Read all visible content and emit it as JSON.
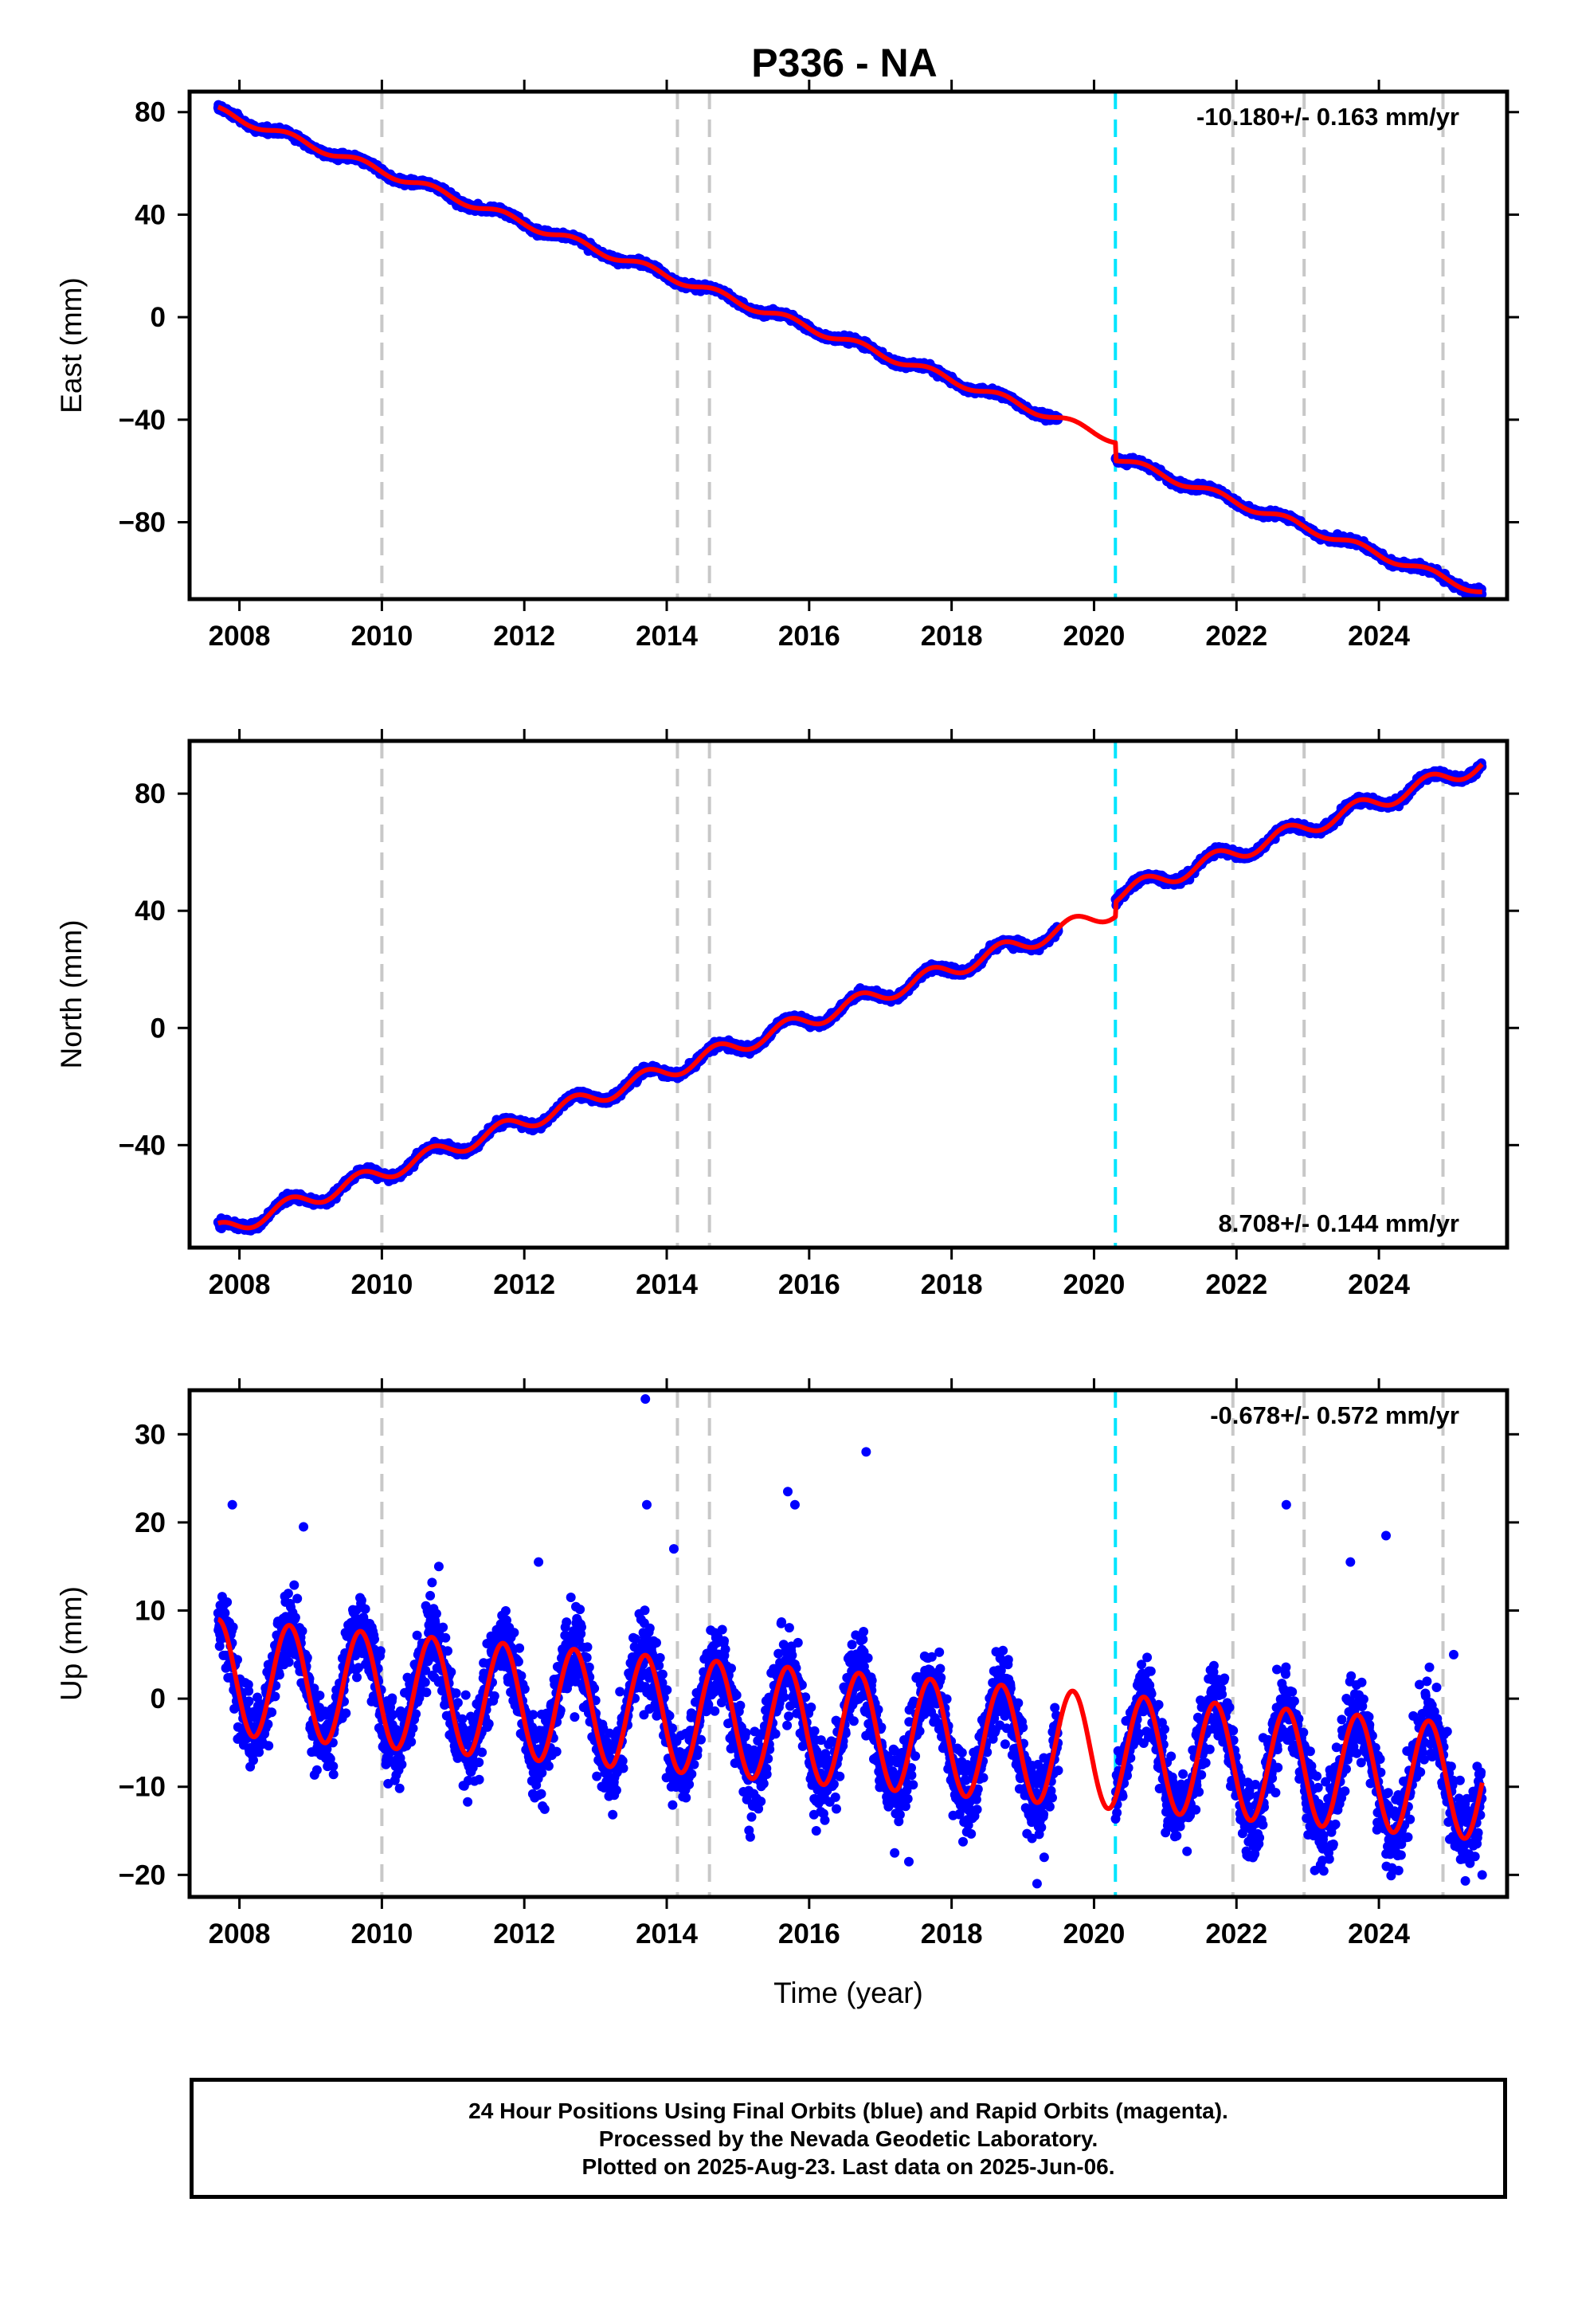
{
  "page": {
    "title": "P336 - NA",
    "footer": [
      "24 Hour Positions Using Final Orbits (blue) and Rapid Orbits (magenta).",
      "Processed by the Nevada Geodetic Laboratory.",
      "Plotted on 2025-Aug-23. Last data on 2025-Jun-06."
    ]
  },
  "colors": {
    "final_orbit_points": "#0000ff",
    "model_fit": "#ff0000",
    "equipment_change": "#c8c8c8",
    "earthquake": "#00e5ff"
  },
  "chart_data": [
    {
      "type": "scatter",
      "component": "East",
      "ylabel": "East (mm)",
      "xlabel": "",
      "xlim": [
        2007.3,
        2025.8
      ],
      "ylim": [
        -110,
        88
      ],
      "xticks": [
        2008,
        2010,
        2012,
        2014,
        2016,
        2018,
        2020,
        2022,
        2024
      ],
      "yticks": [
        -80,
        -40,
        0,
        40,
        80
      ],
      "rate_label": "-10.180+/- 0.163 mm/yr",
      "rate_placement": "top-right",
      "gray_dashed_lines": [
        2010.0,
        2014.15,
        2014.6,
        2021.95,
        2022.95,
        2024.9
      ],
      "cyan_dashed_lines": [
        2020.3
      ],
      "data_gap": [
        2019.5,
        2020.3
      ],
      "model": {
        "velocity_mm_per_yr": -10.18,
        "intercept_mm_at_2007_7": 80.5,
        "annual_amplitude_mm": 1.5,
        "offset_at_2020_3_mm": -7
      },
      "series": [
        {
          "name": "",
          "kind": "points",
          "x_range": [
            2007.7,
            2025.45
          ],
          "scatter_mm": 1.3,
          "anchor_points": [
            [
              2007.7,
              81
            ],
            [
              2010.0,
              59
            ],
            [
              2012.0,
              42
            ],
            [
              2014.0,
              20
            ],
            [
              2016.0,
              0
            ],
            [
              2018.0,
              -20
            ],
            [
              2019.4,
              -36
            ],
            [
              2020.3,
              -50
            ],
            [
              2022.0,
              -64
            ],
            [
              2024.0,
              -84
            ],
            [
              2025.4,
              -104
            ]
          ]
        },
        {
          "name": "",
          "kind": "model-line",
          "x_range": [
            2007.7,
            2025.45
          ]
        }
      ]
    },
    {
      "type": "scatter",
      "component": "North",
      "ylabel": "North (mm)",
      "xlabel": "",
      "xlim": [
        2007.3,
        2025.8
      ],
      "ylim": [
        -75,
        98
      ],
      "xticks": [
        2008,
        2010,
        2012,
        2014,
        2016,
        2018,
        2020,
        2022,
        2024
      ],
      "yticks": [
        -40,
        0,
        40,
        80
      ],
      "rate_label": "8.708+/- 0.144 mm/yr",
      "rate_placement": "bottom-right",
      "gray_dashed_lines": [
        2010.0,
        2014.15,
        2014.6,
        2021.95,
        2022.95,
        2024.9
      ],
      "cyan_dashed_lines": [
        2020.3
      ],
      "data_gap": [
        2019.5,
        2020.3
      ],
      "model": {
        "velocity_mm_per_yr": 8.708,
        "intercept_mm_at_2007_7": -69.5,
        "annual_amplitude_mm": 2.8,
        "offset_at_2020_3_mm": 5
      },
      "series": [
        {
          "name": "",
          "kind": "points",
          "x_range": [
            2007.7,
            2025.45
          ],
          "scatter_mm": 1.3,
          "anchor_points": [
            [
              2007.7,
              -68
            ],
            [
              2010.0,
              -50
            ],
            [
              2012.0,
              -33
            ],
            [
              2014.0,
              -16
            ],
            [
              2016.0,
              1
            ],
            [
              2018.0,
              19
            ],
            [
              2019.4,
              37
            ],
            [
              2020.3,
              45
            ],
            [
              2022.0,
              56
            ],
            [
              2024.0,
              76
            ],
            [
              2025.4,
              93
            ]
          ]
        },
        {
          "name": "",
          "kind": "model-line",
          "x_range": [
            2007.7,
            2025.45
          ]
        }
      ]
    },
    {
      "type": "scatter",
      "component": "Up",
      "ylabel": "Up (mm)",
      "xlabel": "Time (year)",
      "xlim": [
        2007.3,
        2025.8
      ],
      "ylim": [
        -22.5,
        35
      ],
      "xticks": [
        2008,
        2010,
        2012,
        2014,
        2016,
        2018,
        2020,
        2022,
        2024
      ],
      "yticks": [
        -20,
        -10,
        0,
        10,
        20,
        30
      ],
      "rate_label": "-0.678+/- 0.572 mm/yr",
      "rate_placement": "top-right",
      "gray_dashed_lines": [
        2010.0,
        2014.15,
        2014.6,
        2021.95,
        2022.95,
        2024.9
      ],
      "cyan_dashed_lines": [
        2020.3
      ],
      "data_gap": [
        2019.5,
        2020.3
      ],
      "model": {
        "velocity_mm_per_yr": -0.678,
        "intercept_mm_at_2007_7": 2.5,
        "annual_amplitude_mm": 6.5,
        "offset_at_2020_3_mm": 0
      },
      "series": [
        {
          "name": "",
          "kind": "points",
          "x_range": [
            2007.7,
            2025.45
          ],
          "scatter_mm": 4.5,
          "outliers": [
            [
              2007.9,
              22
            ],
            [
              2008.9,
              19.5
            ],
            [
              2010.8,
              15
            ],
            [
              2012.2,
              15.5
            ],
            [
              2013.7,
              34
            ],
            [
              2013.72,
              22
            ],
            [
              2014.1,
              17
            ],
            [
              2015.7,
              23.5
            ],
            [
              2015.8,
              22
            ],
            [
              2016.8,
              28
            ],
            [
              2016.1,
              -15
            ],
            [
              2017.2,
              -17.5
            ],
            [
              2017.4,
              -18.5
            ],
            [
              2019.2,
              -21
            ],
            [
              2019.3,
              -18
            ],
            [
              2022.7,
              22
            ],
            [
              2023.1,
              -19.5
            ],
            [
              2023.6,
              15.5
            ],
            [
              2024.1,
              18.5
            ],
            [
              2025.05,
              5
            ],
            [
              2025.45,
              -20
            ]
          ]
        },
        {
          "name": "",
          "kind": "model-line",
          "x_range": [
            2007.7,
            2025.45
          ]
        }
      ]
    }
  ]
}
